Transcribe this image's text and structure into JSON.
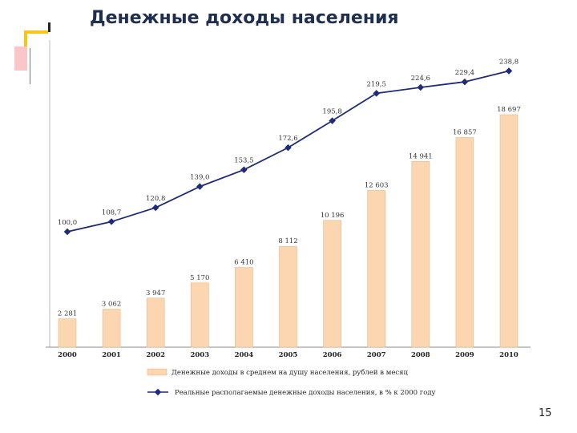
{
  "slide": {
    "title": "Денежные доходы населения",
    "page_number": "15"
  },
  "chart_data": {
    "type": "bar+line",
    "categories": [
      "2000",
      "2001",
      "2002",
      "2003",
      "2004",
      "2005",
      "2006",
      "2007",
      "2008",
      "2009",
      "2010"
    ],
    "bar_labels": [
      "2 281",
      "3 062",
      "3 947",
      "5 170",
      "6 410",
      "8 112",
      "10 196",
      "12 603",
      "14 941",
      "16 857",
      "18 697"
    ],
    "bar_values": [
      2281,
      3062,
      3947,
      5170,
      6410,
      8112,
      10196,
      12603,
      14941,
      16857,
      18697
    ],
    "line_labels": [
      "100,0",
      "108,7",
      "120,8",
      "139,0",
      "153,5",
      "172,6",
      "195,8",
      "219,5",
      "224,6",
      "229,4",
      "238,8"
    ],
    "line_values": [
      100.0,
      108.7,
      120.8,
      139.0,
      153.5,
      172.6,
      195.8,
      219.5,
      224.6,
      229.4,
      238.8
    ],
    "series": [
      {
        "name": "Денежные доходы в среднем на душу населения, рублей в месяц",
        "color": "#fbd6b0",
        "kind": "bar"
      },
      {
        "name": "Реальные располагаемые денежные доходы населения, в % к 2000 году",
        "color": "#1f2a7a",
        "kind": "line"
      }
    ],
    "legend_position": "bottom",
    "grid": false
  }
}
